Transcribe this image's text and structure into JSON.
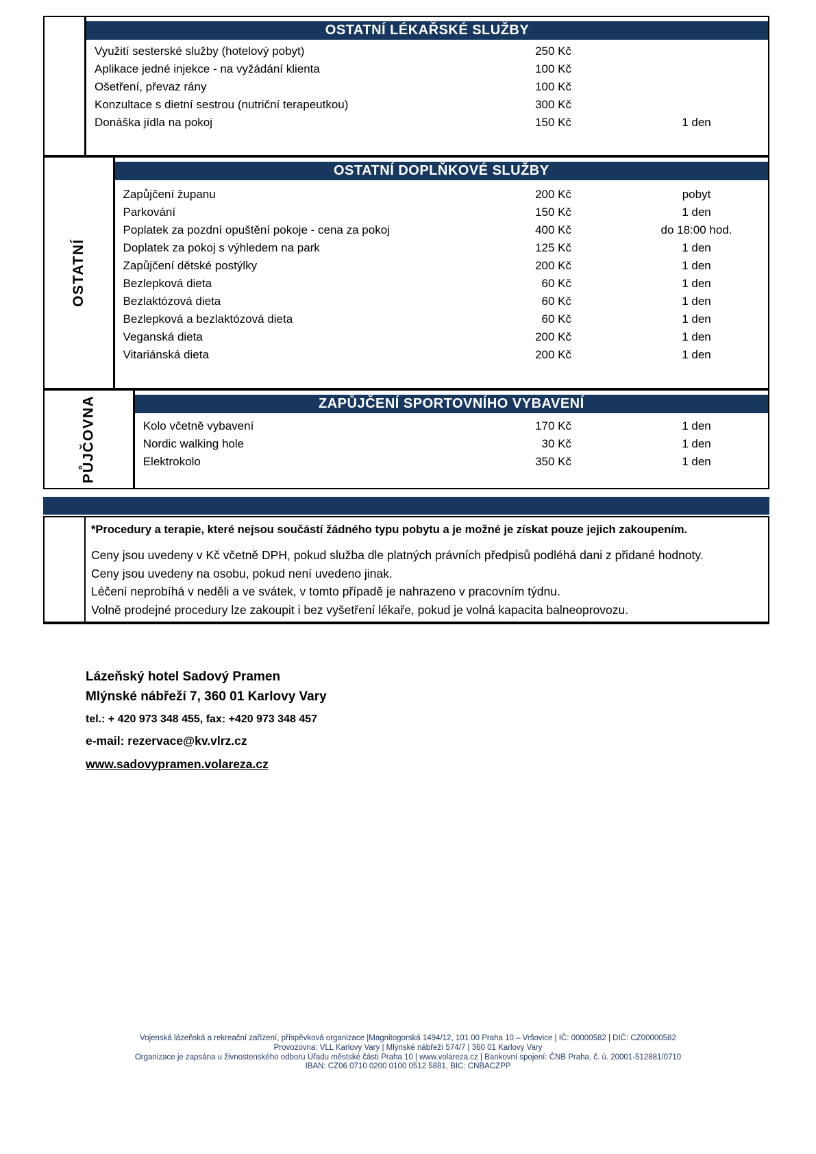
{
  "colors": {
    "navy_header": "#17375E",
    "footer_text": "#1F3864"
  },
  "sections": [
    {
      "sidebar_label": "",
      "header": "OSTATNÍ LÉKAŘSKÉ SLUŽBY",
      "rows": [
        {
          "name": "Využití sesterské služby (hotelový pobyt)",
          "price": "250 Kč",
          "unit": ""
        },
        {
          "name": "Aplikace jedné injekce - na vyžádání klienta",
          "price": "100 Kč",
          "unit": ""
        },
        {
          "name": "Ošetření, převaz rány",
          "price": "100 Kč",
          "unit": ""
        },
        {
          "name": "Konzultace s dietní sestrou (nutriční terapeutkou)",
          "price": "300 Kč",
          "unit": ""
        },
        {
          "name": "Donáška jídla na pokoj",
          "price": "150 Kč",
          "unit": "1 den"
        }
      ]
    },
    {
      "sidebar_label": "OSTATNÍ",
      "header": "OSTATNÍ DOPLŇKOVÉ SLUŽBY",
      "rows": [
        {
          "name": "Zapůjčení županu",
          "price": "200 Kč",
          "unit": "pobyt"
        },
        {
          "name": "Parkování",
          "price": "150 Kč",
          "unit": "1 den"
        },
        {
          "name": "Poplatek za pozdní opuštění pokoje - cena za pokoj",
          "price": "400 Kč",
          "unit": "do 18:00 hod."
        },
        {
          "name": "Doplatek za pokoj s výhledem na park",
          "price": "125 Kč",
          "unit": "1 den"
        },
        {
          "name": "Zapůjčení dětské postýlky",
          "price": "200 Kč",
          "unit": "1 den"
        },
        {
          "name": "Bezlepková dieta",
          "price": "60 Kč",
          "unit": "1 den"
        },
        {
          "name": "Bezlaktózová dieta",
          "price": "60 Kč",
          "unit": "1 den"
        },
        {
          "name": "Bezlepková a bezlaktózová dieta",
          "price": "60 Kč",
          "unit": "1 den"
        },
        {
          "name": "Veganská dieta",
          "price": "200 Kč",
          "unit": "1 den"
        },
        {
          "name": "Vitariánská dieta",
          "price": "200 Kč",
          "unit": "1 den"
        }
      ]
    },
    {
      "sidebar_label": "PŮJČOVNA",
      "header": "ZAPŮJČENÍ SPORTOVNÍHO VYBAVENÍ",
      "rows": [
        {
          "name": "Kolo včetně vybavení",
          "price": "170 Kč",
          "unit": "1 den"
        },
        {
          "name": "Nordic walking hole",
          "price": "30 Kč",
          "unit": "1 den"
        },
        {
          "name": "Elektrokolo",
          "price": "350 Kč",
          "unit": "1 den"
        }
      ]
    }
  ],
  "notes": {
    "bold_note": "*Procedury a terapie, které nejsou součástí žádného typu pobytu a je možné je získat pouze jejich zakoupením.",
    "lines": [
      "Ceny jsou uvedeny v Kč včetně DPH, pokud služba dle platných právních předpisů podléhá dani z přidané hodnoty.",
      "Ceny jsou uvedeny na osobu, pokud není uvedeno jinak.",
      "Léčení neprobíhá v neděli a ve svátek, v tomto případě je nahrazeno v pracovním týdnu.",
      "Volně prodejné procedury lze zakoupit i bez vyšetření lékaře, pokud je volná kapacita balneoprovozu."
    ]
  },
  "contact": {
    "name": "Lázeňský hotel Sadový Pramen",
    "address": "Mlýnské nábřeží 7, 360 01 Karlovy Vary",
    "phone_fax": "tel.: + 420 973 348 455, fax: +420 973 348 457",
    "email": "e-mail: rezervace@kv.vlrz.cz",
    "website": "www.sadovypramen.volareza.cz"
  },
  "footer": {
    "lines": [
      "Vojenská lázeňská a rekreační zařízení, příspěvková organizace |Magnitogorská 1494/12, 101 00 Praha 10 – Vršovice | IČ: 00000582 | DIČ: CZ00000582",
      "Provozovna: VLL Karlovy Vary | Mlýnské nábřeží 574/7 | 360 01 Karlovy Vary",
      "Organizace je zapsána u živnostenského odboru Úřadu městské části Praha 10 | www.volareza.cz | Bankovní spojení: ČNB Praha, č. ú. 20001-512881/0710",
      "IBAN: CZ06 0710 0200 0100 0512 5881, BIC: CNBACZPP"
    ]
  }
}
